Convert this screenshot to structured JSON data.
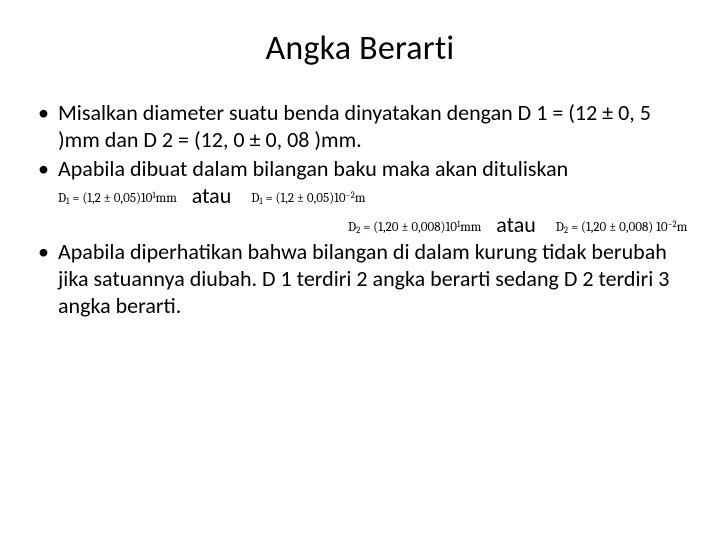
{
  "title": "Angka Berarti",
  "bullets": {
    "b1": "Misalkan diameter suatu benda dinyatakan dengan D 1 = (12 ± 0, 5 )mm dan D 2 = (12, 0 ± 0, 08 )mm.",
    "b2_lead": "Apabila dibuat dalam bilangan baku maka akan dituliskan",
    "b3": "Apabila diperhatikan bahwa bilangan di dalam kurung tidak berubah jika satuannya diubah. D 1 terdiri 2 angka berarti sedang D 2 terdiri 3 angka berarti."
  },
  "connector": "atau",
  "formulas": {
    "d1_mm_label": "D",
    "d1_mm_sub": "1",
    "d1_mm_body": " = (1,2  ± 0,05)10",
    "d1_mm_sup": "1",
    "d1_mm_unit": "mm",
    "d1_m_label": "D",
    "d1_m_sub": "1",
    "d1_m_body": " = (1,2  ± 0,05)10",
    "d1_m_sup": "−2",
    "d1_m_unit": "m",
    "d2_mm_label": "D",
    "d2_mm_sub": "2",
    "d2_mm_body": " = (1,20  ± 0,008)10",
    "d2_mm_sup": "1",
    "d2_mm_unit": "mm",
    "d2_m_label": "D",
    "d2_m_sub": "2",
    "d2_m_body": " = (1,20  ± 0,008) 10",
    "d2_m_sup": "−2",
    "d2_m_unit": "m"
  },
  "style": {
    "bg": "#ffffff",
    "text": "#000000",
    "title_fontsize": 34,
    "body_fontsize": 22,
    "formula_fontsize": 13
  }
}
